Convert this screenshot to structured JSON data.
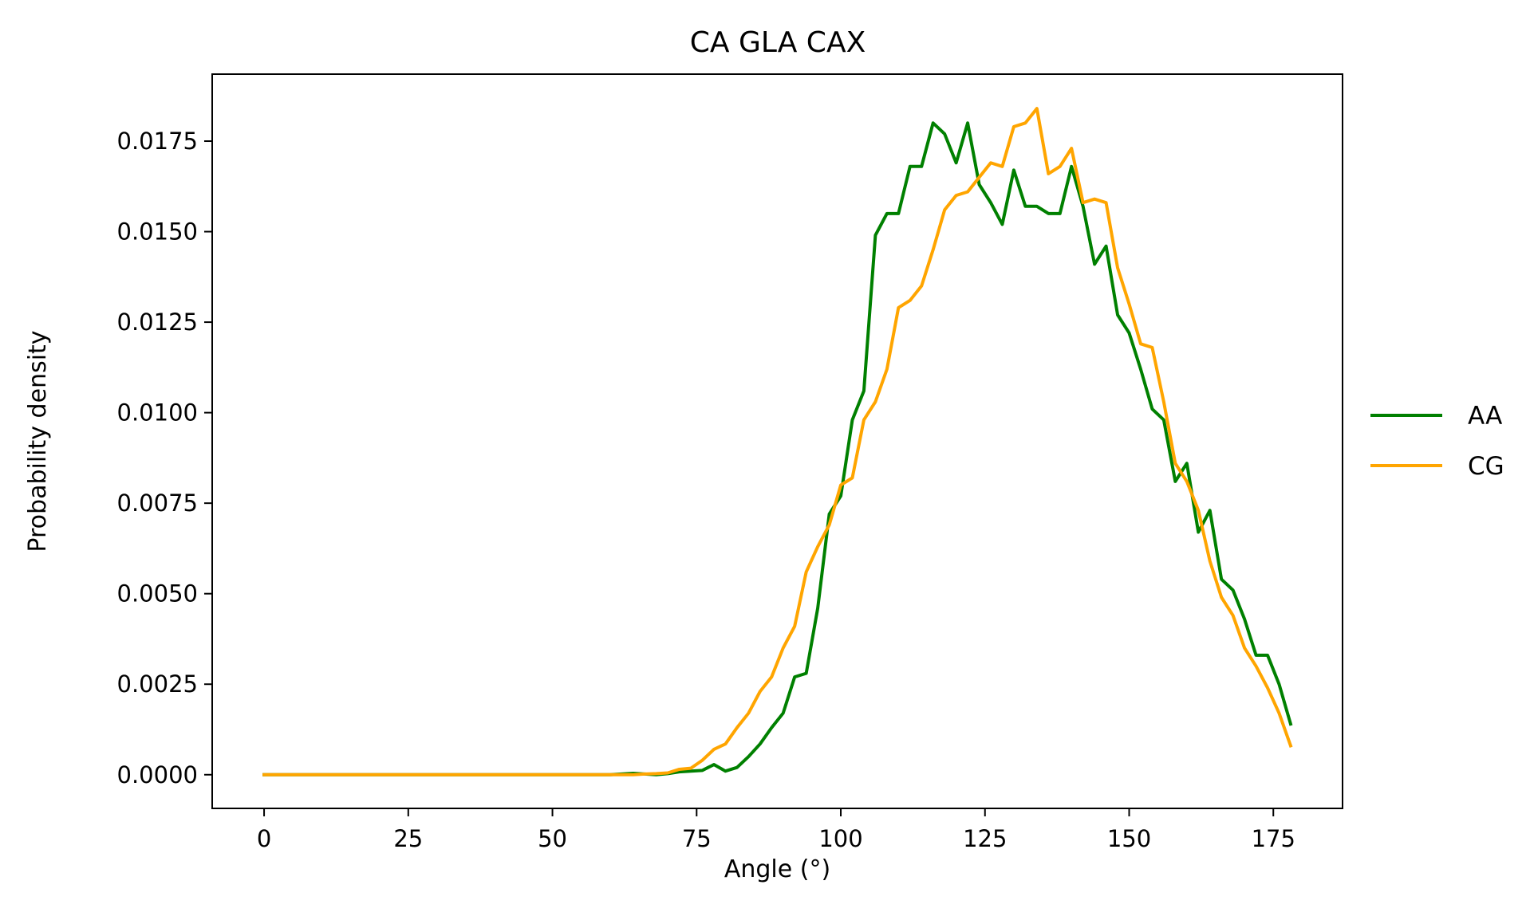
{
  "chart_data": {
    "type": "line",
    "title": "CA GLA CAX",
    "xlabel": "Angle (°)",
    "ylabel": "Probability density",
    "xlim": [
      -9,
      187
    ],
    "ylim": [
      -0.00093,
      0.01935
    ],
    "xticks": [
      0,
      25,
      50,
      75,
      100,
      125,
      150,
      175
    ],
    "xtick_labels": [
      "0",
      "25",
      "50",
      "75",
      "100",
      "125",
      "150",
      "175"
    ],
    "yticks": [
      0.0,
      0.0025,
      0.005,
      0.0075,
      0.01,
      0.0125,
      0.015,
      0.0175
    ],
    "ytick_labels": [
      "0.0000",
      "0.0025",
      "0.0050",
      "0.0075",
      "0.0100",
      "0.0125",
      "0.0150",
      "0.0175"
    ],
    "grid": false,
    "legend_position": "outside-right",
    "series": [
      {
        "name": "AA",
        "color": "#008000",
        "points": [
          [
            0,
            0
          ],
          [
            10,
            0
          ],
          [
            20,
            0
          ],
          [
            30,
            0
          ],
          [
            40,
            0
          ],
          [
            50,
            0
          ],
          [
            60,
            0
          ],
          [
            62,
            2e-05
          ],
          [
            64,
            4e-05
          ],
          [
            66,
            2e-05
          ],
          [
            68,
            0.0
          ],
          [
            70,
            3e-05
          ],
          [
            72,
            8e-05
          ],
          [
            74,
            0.0001
          ],
          [
            76,
            0.00012
          ],
          [
            78,
            0.00028
          ],
          [
            80,
            0.0001
          ],
          [
            82,
            0.0002
          ],
          [
            84,
            0.0005
          ],
          [
            86,
            0.00085
          ],
          [
            88,
            0.0013
          ],
          [
            90,
            0.0017
          ],
          [
            92,
            0.0027
          ],
          [
            94,
            0.0028
          ],
          [
            96,
            0.0046
          ],
          [
            98,
            0.0072
          ],
          [
            100,
            0.0077
          ],
          [
            102,
            0.0098
          ],
          [
            104,
            0.0106
          ],
          [
            106,
            0.0149
          ],
          [
            108,
            0.0155
          ],
          [
            110,
            0.0155
          ],
          [
            112,
            0.0168
          ],
          [
            114,
            0.0168
          ],
          [
            116,
            0.018
          ],
          [
            118,
            0.0177
          ],
          [
            120,
            0.0169
          ],
          [
            122,
            0.018
          ],
          [
            124,
            0.0163
          ],
          [
            126,
            0.0158
          ],
          [
            128,
            0.0152
          ],
          [
            130,
            0.0167
          ],
          [
            132,
            0.0157
          ],
          [
            134,
            0.0157
          ],
          [
            136,
            0.0155
          ],
          [
            138,
            0.0155
          ],
          [
            140,
            0.0168
          ],
          [
            142,
            0.0157
          ],
          [
            144,
            0.0141
          ],
          [
            146,
            0.0146
          ],
          [
            148,
            0.0127
          ],
          [
            150,
            0.0122
          ],
          [
            152,
            0.0112
          ],
          [
            154,
            0.0101
          ],
          [
            156,
            0.0098
          ],
          [
            158,
            0.0081
          ],
          [
            160,
            0.0086
          ],
          [
            162,
            0.0067
          ],
          [
            164,
            0.0073
          ],
          [
            166,
            0.0054
          ],
          [
            168,
            0.0051
          ],
          [
            170,
            0.0043
          ],
          [
            172,
            0.0033
          ],
          [
            174,
            0.0033
          ],
          [
            176,
            0.0025
          ],
          [
            178,
            0.0014
          ]
        ]
      },
      {
        "name": "CG",
        "color": "#ffa500",
        "points": [
          [
            0,
            0
          ],
          [
            10,
            0
          ],
          [
            20,
            0
          ],
          [
            30,
            0
          ],
          [
            40,
            0
          ],
          [
            50,
            0
          ],
          [
            60,
            0
          ],
          [
            62,
            0.0
          ],
          [
            64,
            0.0
          ],
          [
            66,
            2e-05
          ],
          [
            68,
            3e-05
          ],
          [
            70,
            5e-05
          ],
          [
            72,
            0.00015
          ],
          [
            74,
            0.00018
          ],
          [
            76,
            0.0004
          ],
          [
            78,
            0.0007
          ],
          [
            80,
            0.00085
          ],
          [
            82,
            0.0013
          ],
          [
            84,
            0.0017
          ],
          [
            86,
            0.0023
          ],
          [
            88,
            0.0027
          ],
          [
            90,
            0.0035
          ],
          [
            92,
            0.0041
          ],
          [
            94,
            0.0056
          ],
          [
            96,
            0.0063
          ],
          [
            98,
            0.0069
          ],
          [
            100,
            0.008
          ],
          [
            102,
            0.0082
          ],
          [
            104,
            0.0098
          ],
          [
            106,
            0.0103
          ],
          [
            108,
            0.0112
          ],
          [
            110,
            0.0129
          ],
          [
            112,
            0.0131
          ],
          [
            114,
            0.0135
          ],
          [
            116,
            0.0145
          ],
          [
            118,
            0.0156
          ],
          [
            120,
            0.016
          ],
          [
            122,
            0.0161
          ],
          [
            124,
            0.0165
          ],
          [
            126,
            0.0169
          ],
          [
            128,
            0.0168
          ],
          [
            130,
            0.0179
          ],
          [
            132,
            0.018
          ],
          [
            134,
            0.0184
          ],
          [
            136,
            0.0166
          ],
          [
            138,
            0.0168
          ],
          [
            140,
            0.0173
          ],
          [
            142,
            0.0158
          ],
          [
            144,
            0.0159
          ],
          [
            146,
            0.0158
          ],
          [
            148,
            0.014
          ],
          [
            150,
            0.013
          ],
          [
            152,
            0.0119
          ],
          [
            154,
            0.0118
          ],
          [
            156,
            0.0103
          ],
          [
            158,
            0.0086
          ],
          [
            160,
            0.0081
          ],
          [
            162,
            0.0073
          ],
          [
            164,
            0.0059
          ],
          [
            166,
            0.0049
          ],
          [
            168,
            0.0044
          ],
          [
            170,
            0.0035
          ],
          [
            172,
            0.003
          ],
          [
            174,
            0.0024
          ],
          [
            176,
            0.0017
          ],
          [
            178,
            0.0008
          ]
        ]
      }
    ]
  }
}
